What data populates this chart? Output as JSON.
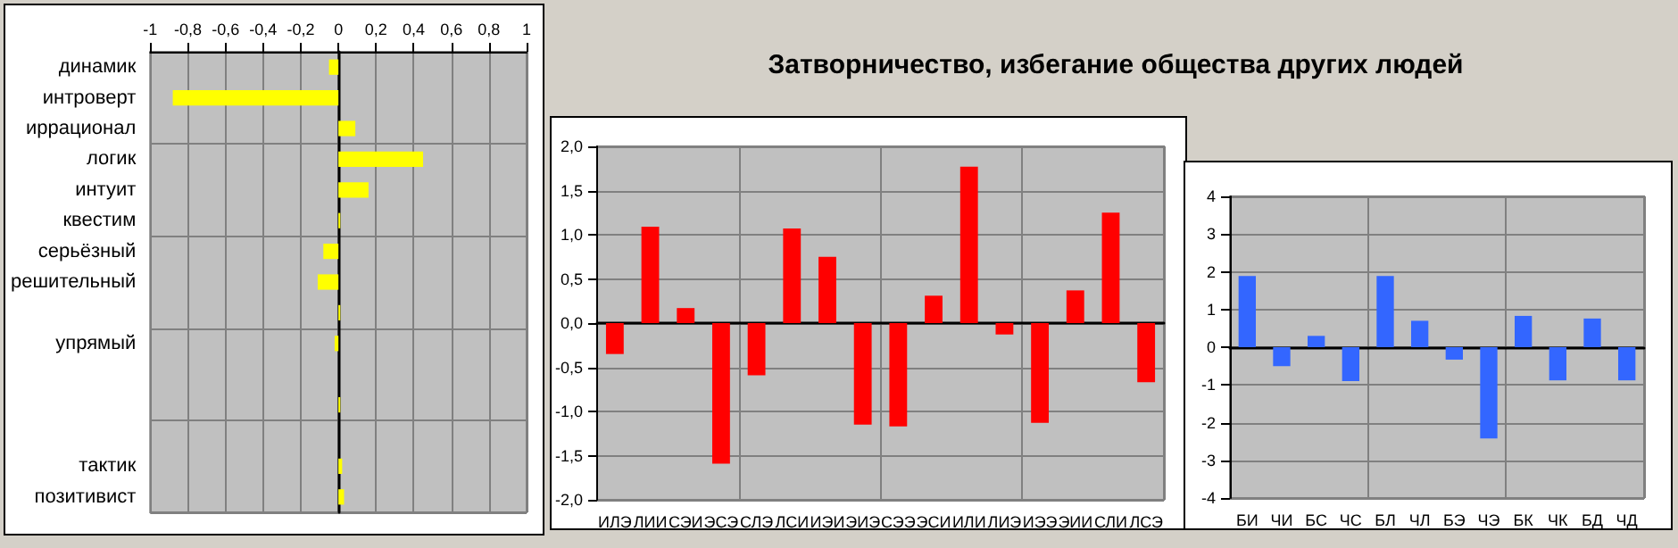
{
  "chart_data": [
    {
      "type": "bar",
      "orientation": "horizontal",
      "categories": [
        "динамик",
        "интроверт",
        "иррационал",
        "логик",
        "интуит",
        "квестим",
        "серьёзный",
        "решительный",
        null,
        "упрямый",
        null,
        null,
        null,
        "тактик",
        "позитивист"
      ],
      "values": [
        -0.05,
        -0.88,
        0.09,
        0.45,
        0.16,
        0.01,
        -0.08,
        -0.11,
        0.01,
        -0.02,
        0,
        0.01,
        0,
        0.02,
        0.03
      ],
      "color": "#ffff00",
      "xlim": [
        -1,
        1
      ],
      "xticks": [
        -1,
        {
          "value": -0.8,
          "label": "-0,8"
        },
        {
          "value": -0.6,
          "label": "-0,6"
        },
        {
          "value": -0.4,
          "label": "-0,4"
        },
        {
          "value": -0.2,
          "label": "-0,2"
        },
        0,
        {
          "value": 0.2,
          "label": "0,2"
        },
        {
          "value": 0.4,
          "label": "0,4"
        },
        {
          "value": 0.6,
          "label": "0,6"
        },
        {
          "value": 0.8,
          "label": "0,8"
        },
        1
      ],
      "grid": true
    },
    {
      "type": "bar",
      "title": "Затворничество, избегание общества других людей",
      "categories": [
        "ИЛЭ",
        "ЛИИ",
        "СЭИ",
        "ЭСЭ",
        "СЛЭ",
        "ЛСИ",
        "ИЭИ",
        "ЭИЭ",
        "СЭЭ",
        "ЭСИ",
        "ИЛИ",
        "ЛИЭ",
        "ИЭЭ",
        "ЭИИ",
        "СЛИ",
        "ЛСЭ"
      ],
      "values": [
        -0.35,
        1.09,
        0.17,
        -1.59,
        -0.59,
        1.07,
        0.75,
        -1.15,
        -1.17,
        0.31,
        1.77,
        -0.13,
        -1.13,
        0.37,
        1.25,
        -0.67
      ],
      "color": "#ff0000",
      "ylim": [
        -2,
        2
      ],
      "yticks": [
        {
          "value": -2,
          "label": "-2,0"
        },
        {
          "value": -1.5,
          "label": "-1,5"
        },
        {
          "value": -1,
          "label": "-1,0"
        },
        {
          "value": -0.5,
          "label": "-0,5"
        },
        {
          "value": 0,
          "label": "0,0"
        },
        {
          "value": 0.5,
          "label": "0,5"
        },
        {
          "value": 1,
          "label": "1,0"
        },
        {
          "value": 1.5,
          "label": "1,5"
        },
        {
          "value": 2,
          "label": "2,0"
        }
      ],
      "grid": true
    },
    {
      "type": "bar",
      "categories": [
        "БИ",
        "ЧИ",
        "БС",
        "ЧС",
        "БЛ",
        "ЧЛ",
        "БЭ",
        "ЧЭ",
        "БК",
        "ЧК",
        "БД",
        "ЧД"
      ],
      "values": [
        1.89,
        -0.5,
        0.3,
        -0.9,
        1.89,
        0.7,
        -0.33,
        -2.42,
        0.83,
        -0.88,
        0.76,
        -0.88
      ],
      "color": "#3366ff",
      "ylim": [
        -4,
        4
      ],
      "yticks": [
        -4,
        -3,
        -2,
        -1,
        0,
        1,
        2,
        3,
        4
      ],
      "grid": true
    }
  ]
}
